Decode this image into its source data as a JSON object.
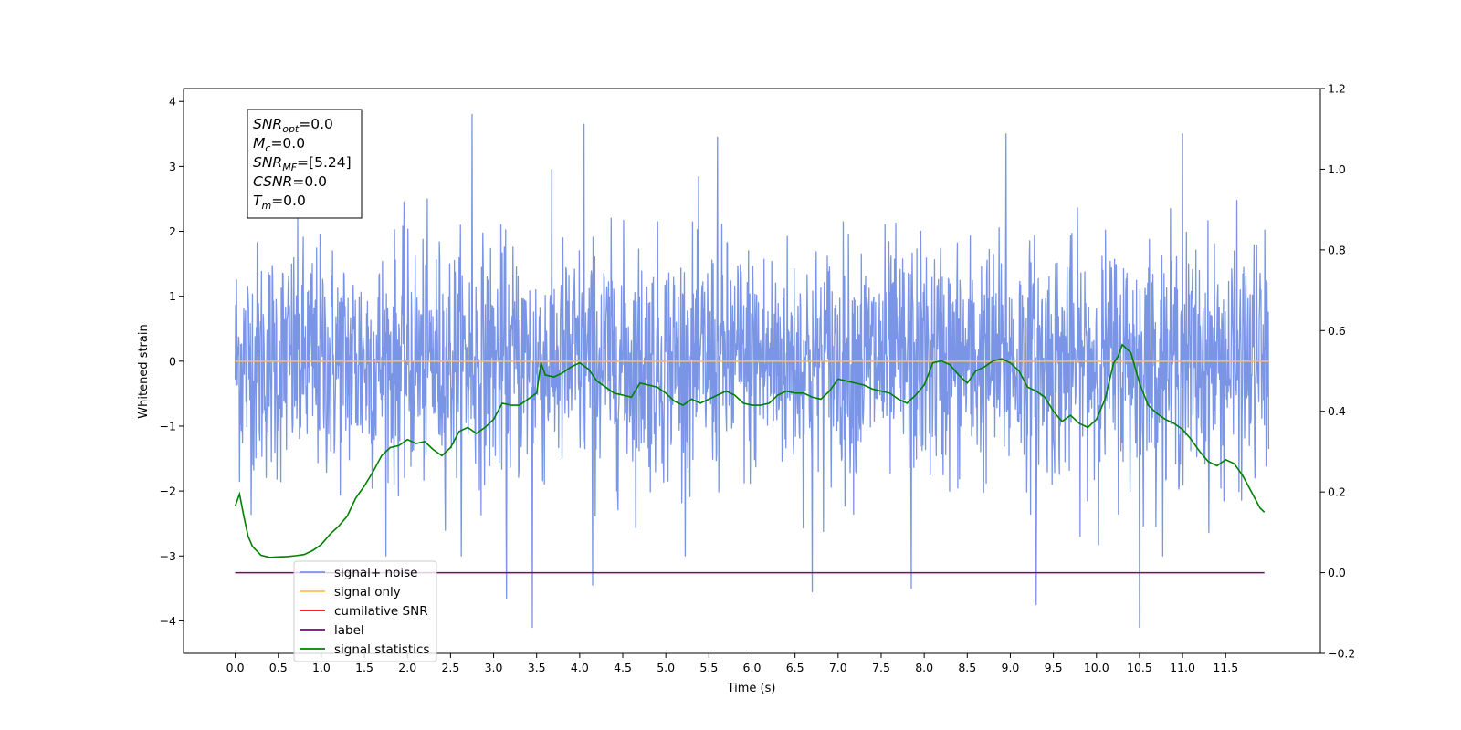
{
  "chart_data": {
    "type": "line",
    "xlabel": "Time (s)",
    "ylabel": "Whitened strain",
    "xlim": [
      -0.6,
      12.6
    ],
    "ylim": [
      -4.5,
      4.2
    ],
    "ylim_right": [
      -0.2,
      1.2
    ],
    "x_ticks": [
      0.0,
      0.5,
      1.0,
      1.5,
      2.0,
      2.5,
      3.0,
      3.5,
      4.0,
      4.5,
      5.0,
      5.5,
      6.0,
      6.5,
      7.0,
      7.5,
      8.0,
      8.5,
      9.0,
      9.5,
      10.0,
      10.5,
      11.0,
      11.5
    ],
    "x_tick_labels": [
      "0.0",
      "0.5",
      "1.0",
      "1.5",
      "2.0",
      "2.5",
      "3.0",
      "3.5",
      "4.0",
      "4.5",
      "5.0",
      "5.5",
      "6.0",
      "6.5",
      "7.0",
      "7.5",
      "8.0",
      "8.5",
      "9.0",
      "9.5",
      "10.0",
      "10.5",
      "11.0",
      "11.5"
    ],
    "y_ticks": [
      -4,
      -3,
      -2,
      -1,
      0,
      1,
      2,
      3,
      4
    ],
    "y_tick_labels": [
      "−4",
      "−3",
      "−2",
      "−1",
      "0",
      "1",
      "2",
      "3",
      "4"
    ],
    "y_right_ticks": [
      -0.2,
      0.0,
      0.2,
      0.4,
      0.6,
      0.8,
      1.0,
      1.2
    ],
    "y_right_tick_labels": [
      "−0.2",
      "0.0",
      "0.2",
      "0.4",
      "0.6",
      "0.8",
      "1.0",
      "1.2"
    ],
    "grid": false,
    "legend_position": "lower-left",
    "info_box": {
      "lines": [
        {
          "main": "SNR",
          "sub": "opt",
          "rest": "=0.0"
        },
        {
          "main": "M",
          "sub": "c",
          "rest": "=0.0"
        },
        {
          "main": "SNR",
          "sub": "MF",
          "rest": "=[5.24]"
        },
        {
          "main": "CSNR",
          "sub": "",
          "rest": "=0.0"
        },
        {
          "main": "T",
          "sub": "m",
          "rest": "=0.0"
        }
      ]
    },
    "series": [
      {
        "name": "signal+ noise",
        "color": "#7b95e6",
        "axis": "left",
        "kind": "noise",
        "x_range": [
          0.0,
          12.0
        ],
        "std": 0.9,
        "annotated_extremes": [
          {
            "x": 2.75,
            "y": 3.8
          },
          {
            "x": 4.05,
            "y": 3.65
          },
          {
            "x": 5.6,
            "y": 3.45
          },
          {
            "x": 8.95,
            "y": 3.5
          },
          {
            "x": 11.0,
            "y": 3.5
          },
          {
            "x": 3.45,
            "y": -4.1
          },
          {
            "x": 10.5,
            "y": -4.1
          },
          {
            "x": 9.3,
            "y": -3.75
          },
          {
            "x": 3.15,
            "y": -3.65
          },
          {
            "x": 6.7,
            "y": -3.55
          },
          {
            "x": 7.85,
            "y": -3.5
          },
          {
            "x": 4.15,
            "y": -3.45
          }
        ]
      },
      {
        "name": "signal only",
        "color": "#ffbf55",
        "axis": "left",
        "x": [
          0.0,
          12.0
        ],
        "y": [
          0.0,
          0.0
        ]
      },
      {
        "name": "cumilative SNR",
        "color": "#ff0000",
        "axis": "right",
        "x": [],
        "y": []
      },
      {
        "name": "label",
        "color": "#7f007f",
        "axis": "right",
        "x": [
          0.0,
          11.95
        ],
        "y": [
          0.0,
          0.0
        ]
      },
      {
        "name": "signal statistics",
        "color": "#008000",
        "axis": "right",
        "x": [
          0.0,
          0.05,
          0.1,
          0.15,
          0.2,
          0.3,
          0.4,
          0.5,
          0.6,
          0.7,
          0.8,
          0.9,
          1.0,
          1.1,
          1.2,
          1.3,
          1.4,
          1.5,
          1.6,
          1.7,
          1.8,
          1.9,
          2.0,
          2.1,
          2.2,
          2.3,
          2.4,
          2.5,
          2.6,
          2.7,
          2.8,
          2.9,
          3.0,
          3.1,
          3.2,
          3.3,
          3.4,
          3.5,
          3.55,
          3.6,
          3.7,
          3.8,
          3.9,
          4.0,
          4.1,
          4.2,
          4.3,
          4.4,
          4.5,
          4.6,
          4.7,
          4.8,
          4.9,
          5.0,
          5.1,
          5.2,
          5.3,
          5.4,
          5.5,
          5.6,
          5.7,
          5.8,
          5.9,
          6.0,
          6.1,
          6.2,
          6.3,
          6.4,
          6.5,
          6.6,
          6.7,
          6.8,
          6.9,
          7.0,
          7.1,
          7.2,
          7.3,
          7.4,
          7.5,
          7.6,
          7.7,
          7.8,
          7.9,
          8.0,
          8.1,
          8.2,
          8.3,
          8.4,
          8.5,
          8.6,
          8.7,
          8.8,
          8.9,
          9.0,
          9.1,
          9.2,
          9.3,
          9.4,
          9.5,
          9.6,
          9.7,
          9.8,
          9.9,
          10.0,
          10.1,
          10.2,
          10.25,
          10.3,
          10.4,
          10.5,
          10.6,
          10.7,
          10.8,
          10.9,
          11.0,
          11.1,
          11.2,
          11.3,
          11.4,
          11.5,
          11.6,
          11.7,
          11.8,
          11.9,
          11.95
        ],
        "y": [
          0.165,
          0.195,
          0.14,
          0.09,
          0.065,
          0.043,
          0.038,
          0.039,
          0.04,
          0.042,
          0.045,
          0.055,
          0.07,
          0.095,
          0.115,
          0.14,
          0.185,
          0.215,
          0.25,
          0.29,
          0.31,
          0.315,
          0.33,
          0.32,
          0.325,
          0.305,
          0.29,
          0.31,
          0.35,
          0.36,
          0.345,
          0.36,
          0.38,
          0.42,
          0.415,
          0.415,
          0.43,
          0.445,
          0.52,
          0.49,
          0.485,
          0.495,
          0.51,
          0.52,
          0.505,
          0.475,
          0.46,
          0.445,
          0.44,
          0.435,
          0.47,
          0.465,
          0.46,
          0.445,
          0.425,
          0.415,
          0.43,
          0.42,
          0.43,
          0.44,
          0.45,
          0.44,
          0.42,
          0.415,
          0.415,
          0.42,
          0.44,
          0.45,
          0.445,
          0.445,
          0.435,
          0.43,
          0.45,
          0.48,
          0.475,
          0.47,
          0.465,
          0.455,
          0.45,
          0.445,
          0.43,
          0.42,
          0.44,
          0.465,
          0.52,
          0.525,
          0.515,
          0.49,
          0.47,
          0.5,
          0.51,
          0.525,
          0.53,
          0.52,
          0.5,
          0.46,
          0.45,
          0.435,
          0.4,
          0.375,
          0.39,
          0.37,
          0.36,
          0.38,
          0.43,
          0.52,
          0.535,
          0.565,
          0.545,
          0.47,
          0.415,
          0.395,
          0.38,
          0.37,
          0.355,
          0.33,
          0.3,
          0.275,
          0.265,
          0.28,
          0.27,
          0.24,
          0.2,
          0.16,
          0.15
        ]
      }
    ]
  }
}
